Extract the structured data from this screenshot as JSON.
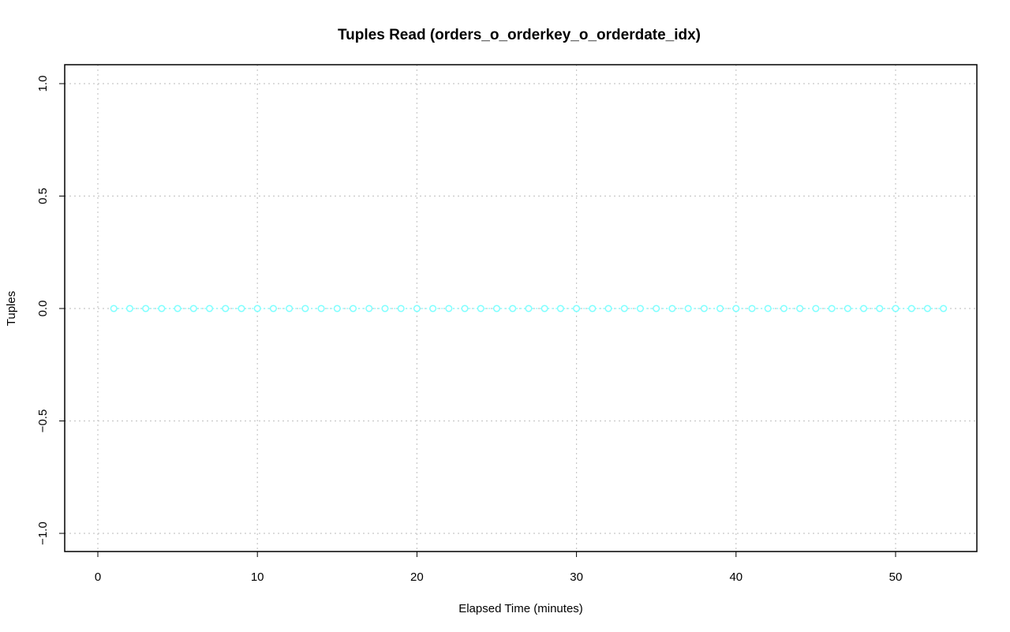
{
  "chart_data": {
    "type": "line",
    "title": "Tuples Read (orders_o_orderkey_o_orderdate_idx)",
    "xlabel": "Elapsed Time (minutes)",
    "ylabel": "Tuples",
    "xlim": [
      0,
      55
    ],
    "ylim": [
      -1.0,
      1.0
    ],
    "x_ticks": [
      0,
      10,
      20,
      30,
      40,
      50
    ],
    "x_tick_labels": [
      "0",
      "10",
      "20",
      "30",
      "40",
      "50"
    ],
    "y_ticks": [
      -1.0,
      -0.5,
      0.0,
      0.5,
      1.0
    ],
    "y_tick_labels": [
      "−1.0",
      "−0.5",
      "0.0",
      "0.5",
      "1.0"
    ],
    "grid": true,
    "legend": "none",
    "series": [
      {
        "color": "#7fffff",
        "marker": "open-circle",
        "line_style": "dotted",
        "x": [
          1,
          2,
          3,
          4,
          5,
          6,
          7,
          8,
          9,
          10,
          11,
          12,
          13,
          14,
          15,
          16,
          17,
          18,
          19,
          20,
          21,
          22,
          23,
          24,
          25,
          26,
          27,
          28,
          29,
          30,
          31,
          32,
          33,
          34,
          35,
          36,
          37,
          38,
          39,
          40,
          41,
          42,
          43,
          44,
          45,
          46,
          47,
          48,
          49,
          50,
          51,
          52,
          53
        ],
        "values": [
          0,
          0,
          0,
          0,
          0,
          0,
          0,
          0,
          0,
          0,
          0,
          0,
          0,
          0,
          0,
          0,
          0,
          0,
          0,
          0,
          0,
          0,
          0,
          0,
          0,
          0,
          0,
          0,
          0,
          0,
          0,
          0,
          0,
          0,
          0,
          0,
          0,
          0,
          0,
          0,
          0,
          0,
          0,
          0,
          0,
          0,
          0,
          0,
          0,
          0,
          0,
          0,
          0
        ]
      }
    ]
  }
}
